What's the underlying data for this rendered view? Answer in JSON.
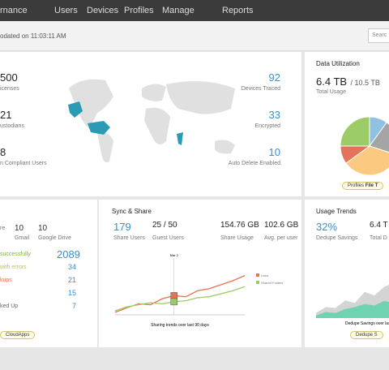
{
  "nav": {
    "items": [
      "rnance",
      "Users",
      "Devices",
      "Profiles",
      "Manage",
      "Reports"
    ]
  },
  "header": {
    "updated": "odated on 11:03:11 AM",
    "search": "Searc"
  },
  "overview": {
    "left": [
      {
        "value": "500",
        "label": "icenses"
      },
      {
        "value": "21",
        "label": "ustodians"
      },
      {
        "value": "8",
        "label": "n Compliant Users"
      }
    ],
    "right": [
      {
        "value": "92",
        "label": "Devices Traced"
      },
      {
        "value": "33",
        "label": "Encrypted"
      },
      {
        "value": "10",
        "label": "Auto Delete Enabled"
      }
    ]
  },
  "data_utilization": {
    "title": "Data Utilization",
    "used": "6.4 TB",
    "total": "/ 10.5 TB",
    "caption": "Total Usage",
    "chart_data": {
      "type": "pie",
      "values": [
        10,
        20,
        35,
        10,
        25
      ],
      "colors": [
        "#8fc1e3",
        "#a5a5a5",
        "#fbc97f",
        "#e3735b",
        "#9ccc65"
      ]
    },
    "legend": [
      "Profiles",
      "File T"
    ]
  },
  "backup": {
    "stats": [
      {
        "value": "10",
        "label": "Gmail"
      },
      {
        "value": "10",
        "label": "Google Drive"
      }
    ],
    "first_label": "re",
    "total": "2089",
    "rows": [
      {
        "label": " successfully",
        "color": "#7cb342"
      },
      {
        "label": "with errors",
        "color": "#c0ca33",
        "value": "34"
      },
      {
        "label": "kups",
        "color": "#e8734e",
        "value": "21"
      },
      {
        "label": "",
        "color": "#666",
        "value": "15"
      },
      {
        "label": "ked Up",
        "color": "#666",
        "value": "7"
      }
    ],
    "button": "CloudApps"
  },
  "sync_share": {
    "title": "Sync & Share",
    "stats": [
      {
        "value": "179",
        "label": "Share Users"
      },
      {
        "value": "25 / 50",
        "label": "Guest Users"
      },
      {
        "value": "154.76 GB",
        "label": "Share Usage"
      },
      {
        "value": "102.6 GB",
        "label": "Avg. per user"
      }
    ],
    "chart_data": {
      "type": "line",
      "marker_label": "Mar 2",
      "marker_index": 5,
      "caption": "Sharing trends over last 90 days",
      "ylim": [
        0,
        100
      ],
      "series": [
        {
          "name": "Links",
          "color": "#e8734e",
          "values": [
            5,
            14,
            22,
            20,
            32,
            38,
            36,
            48,
            52,
            60,
            68,
            78
          ]
        },
        {
          "name": "Shared Folders",
          "color": "#9ccc65",
          "values": [
            8,
            16,
            20,
            24,
            22,
            26,
            28,
            34,
            36,
            42,
            48,
            56
          ]
        }
      ]
    }
  },
  "usage_trends": {
    "title": "Usage Trends",
    "stats": [
      {
        "value": "32%",
        "label": "Dedupe Savings"
      },
      {
        "value": "6.4 T",
        "label": "Total D"
      }
    ],
    "chart_data": {
      "type": "area",
      "caption": "Dedupe Savings over last",
      "ylim": [
        0,
        100
      ],
      "series": [
        {
          "name": "Total",
          "color": "#d4d4d4",
          "values": [
            10,
            22,
            20,
            35,
            30,
            52,
            45,
            62,
            70
          ]
        },
        {
          "name": "Dedupe",
          "color": "#6fd3b3",
          "values": [
            5,
            12,
            10,
            18,
            22,
            28,
            25,
            34,
            30
          ]
        }
      ]
    },
    "button": "Dedupe S"
  }
}
